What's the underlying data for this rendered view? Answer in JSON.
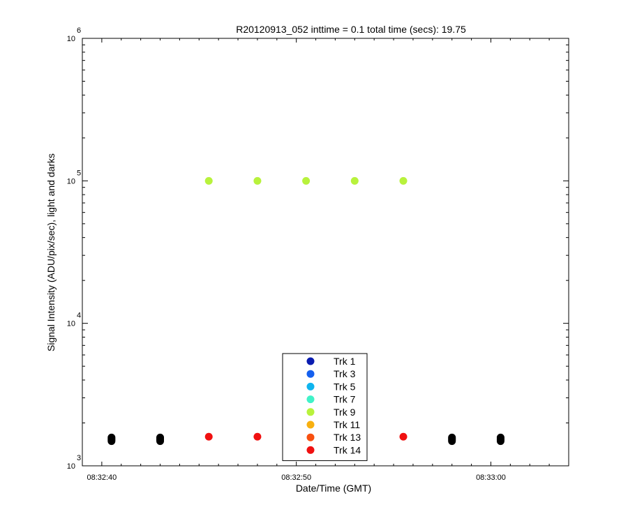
{
  "chart_data": {
    "type": "scatter",
    "title": "R20120913_052 inttime = 0.1 total time (secs): 19.75",
    "xlabel": "Date/Time (GMT)",
    "ylabel": "Signal Intensity (ADU/pix/sec), light and darks",
    "y_scale": "log",
    "ylim": [
      1000,
      1000000
    ],
    "xlim": [
      "08:32:39",
      "08:33:04"
    ],
    "x_ticks": [
      "08:32:40",
      "08:32:50",
      "08:33:00"
    ],
    "y_ticks": [
      {
        "base": "10",
        "exp": "3"
      },
      {
        "base": "10",
        "exp": "4"
      },
      {
        "base": "10",
        "exp": "5"
      },
      {
        "base": "10",
        "exp": "6"
      }
    ],
    "grid": false,
    "legend_position": "bottom-center",
    "series": [
      {
        "name": "Trk 1",
        "color": "#0a1cb0",
        "x": [],
        "y": []
      },
      {
        "name": "Trk 3",
        "color": "#1560ee",
        "x": [],
        "y": []
      },
      {
        "name": "Trk 5",
        "color": "#0fb4ee",
        "x": [],
        "y": []
      },
      {
        "name": "Trk 7",
        "color": "#40f2c8",
        "x": [],
        "y": []
      },
      {
        "name": "Trk 9",
        "color": "#b8f23c",
        "x": [
          "08:32:45.5",
          "08:32:48",
          "08:32:50.5",
          "08:32:53",
          "08:32:55.5"
        ],
        "y": [
          100000,
          100000,
          100000,
          100000,
          100000
        ]
      },
      {
        "name": "Trk 11",
        "color": "#f8b010",
        "x": [],
        "y": []
      },
      {
        "name": "Trk 13",
        "color": "#f85010",
        "x": [],
        "y": []
      },
      {
        "name": "Trk 14",
        "color": "#f01010",
        "x": [
          "08:32:45.5",
          "08:32:48",
          "08:32:55.5"
        ],
        "y": [
          1600,
          1600,
          1600
        ]
      }
    ],
    "dark_points": {
      "color": "#000000",
      "x": [
        "08:32:40.5",
        "08:32:43",
        "08:32:58",
        "08:33:00.5"
      ],
      "y_stack": [
        1580,
        1550,
        1520,
        1490
      ]
    }
  }
}
